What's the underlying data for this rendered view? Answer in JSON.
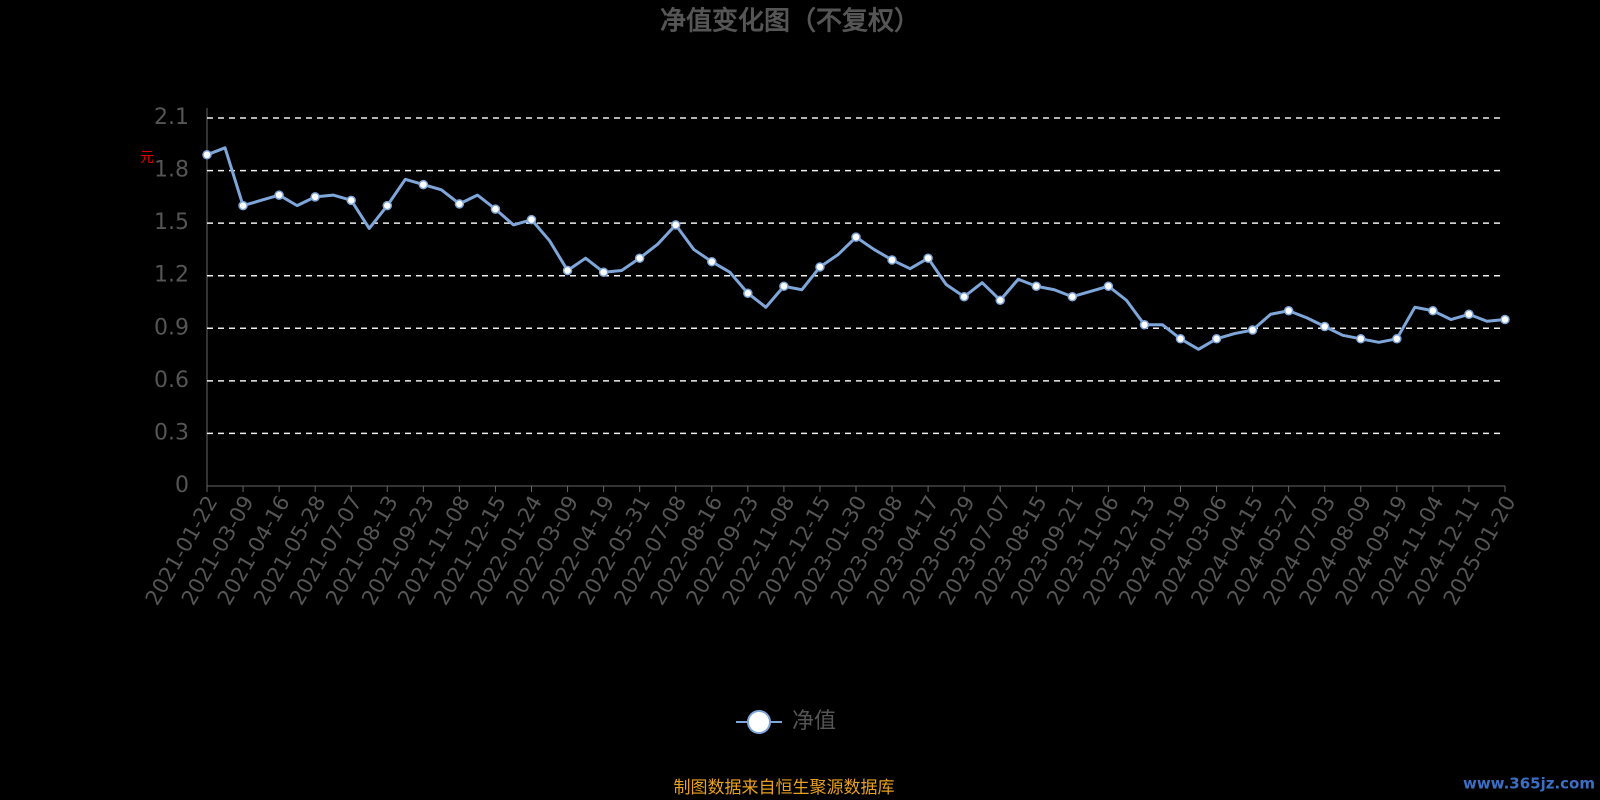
{
  "chart_data": {
    "type": "line",
    "title": "净值变化图（不复权）",
    "y_label": "元",
    "footer": "制图数据来自恒生聚源数据库",
    "watermark": "www.365jz.com",
    "categories": [
      "2021-01-22",
      null,
      "2021-03-09",
      null,
      "2021-04-16",
      null,
      "2021-05-28",
      null,
      "2021-07-07",
      null,
      "2021-08-13",
      null,
      "2021-09-23",
      null,
      "2021-11-08",
      null,
      "2021-12-15",
      null,
      "2022-01-24",
      null,
      "2022-03-09",
      null,
      "2022-04-19",
      null,
      "2022-05-31",
      null,
      "2022-07-08",
      null,
      "2022-08-16",
      null,
      "2022-09-23",
      null,
      "2022-11-08",
      null,
      "2022-12-15",
      null,
      "2023-01-30",
      null,
      "2023-03-08",
      null,
      "2023-04-17",
      null,
      "2023-05-29",
      null,
      "2023-07-07",
      null,
      "2023-08-15",
      null,
      "2023-09-21",
      null,
      "2023-11-06",
      null,
      "2023-12-13",
      null,
      "2024-01-19",
      null,
      "2024-03-06",
      null,
      "2024-04-15",
      null,
      "2024-05-27",
      null,
      "2024-07-03",
      null,
      "2024-08-09",
      null,
      "2024-09-19",
      null,
      "2024-11-04",
      null,
      "2024-12-11",
      null,
      "2025-01-20"
    ],
    "series": [
      {
        "name": "净值",
        "color": "#7ea6d9",
        "values": [
          1.89,
          1.93,
          1.6,
          1.63,
          1.66,
          1.6,
          1.65,
          1.66,
          1.63,
          1.47,
          1.6,
          1.75,
          1.72,
          1.69,
          1.61,
          1.66,
          1.58,
          1.49,
          1.52,
          1.4,
          1.23,
          1.3,
          1.22,
          1.23,
          1.3,
          1.38,
          1.49,
          1.35,
          1.28,
          1.22,
          1.1,
          1.02,
          1.14,
          1.12,
          1.25,
          1.32,
          1.42,
          1.35,
          1.29,
          1.24,
          1.3,
          1.15,
          1.08,
          1.16,
          1.06,
          1.18,
          1.14,
          1.12,
          1.08,
          1.11,
          1.14,
          1.06,
          0.92,
          0.92,
          0.84,
          0.78,
          0.84,
          0.87,
          0.89,
          0.98,
          1.0,
          0.96,
          0.91,
          0.86,
          0.84,
          0.82,
          0.84,
          1.02,
          1.0,
          0.95,
          0.98,
          0.94,
          0.95
        ]
      }
    ],
    "ylim": [
      0,
      2.1
    ],
    "yticks": [
      0,
      0.3,
      0.6,
      0.9,
      1.2,
      1.5,
      1.8,
      2.1
    ],
    "grid": true,
    "legend": "bottom"
  }
}
